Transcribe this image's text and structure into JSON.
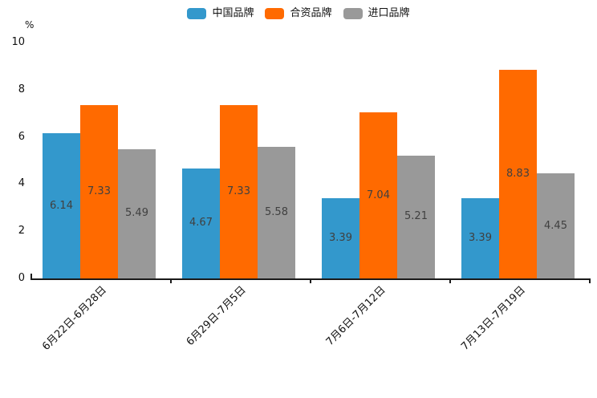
{
  "chart_data": {
    "type": "bar",
    "title": "",
    "unit_label": "%",
    "categories": [
      "6月22日-6月28日",
      "6月29日-7月5日",
      "7月6日-7月12日",
      "7月13日-7月19日"
    ],
    "series": [
      {
        "name": "中国品牌",
        "color": "#3398cc",
        "values": [
          6.14,
          4.67,
          3.39,
          3.39
        ]
      },
      {
        "name": "合资品牌",
        "color": "#ff6a00",
        "values": [
          7.33,
          7.33,
          7.04,
          8.83
        ]
      },
      {
        "name": "进口品牌",
        "color": "#999999",
        "values": [
          5.49,
          5.58,
          5.21,
          4.45
        ]
      }
    ],
    "ylim": [
      0,
      10
    ],
    "yticks": [
      0,
      2,
      4,
      6,
      8,
      10
    ],
    "grid": false,
    "legend_position": "top",
    "value_label_color": "#404040",
    "axis_color": "#1a1a1a"
  }
}
